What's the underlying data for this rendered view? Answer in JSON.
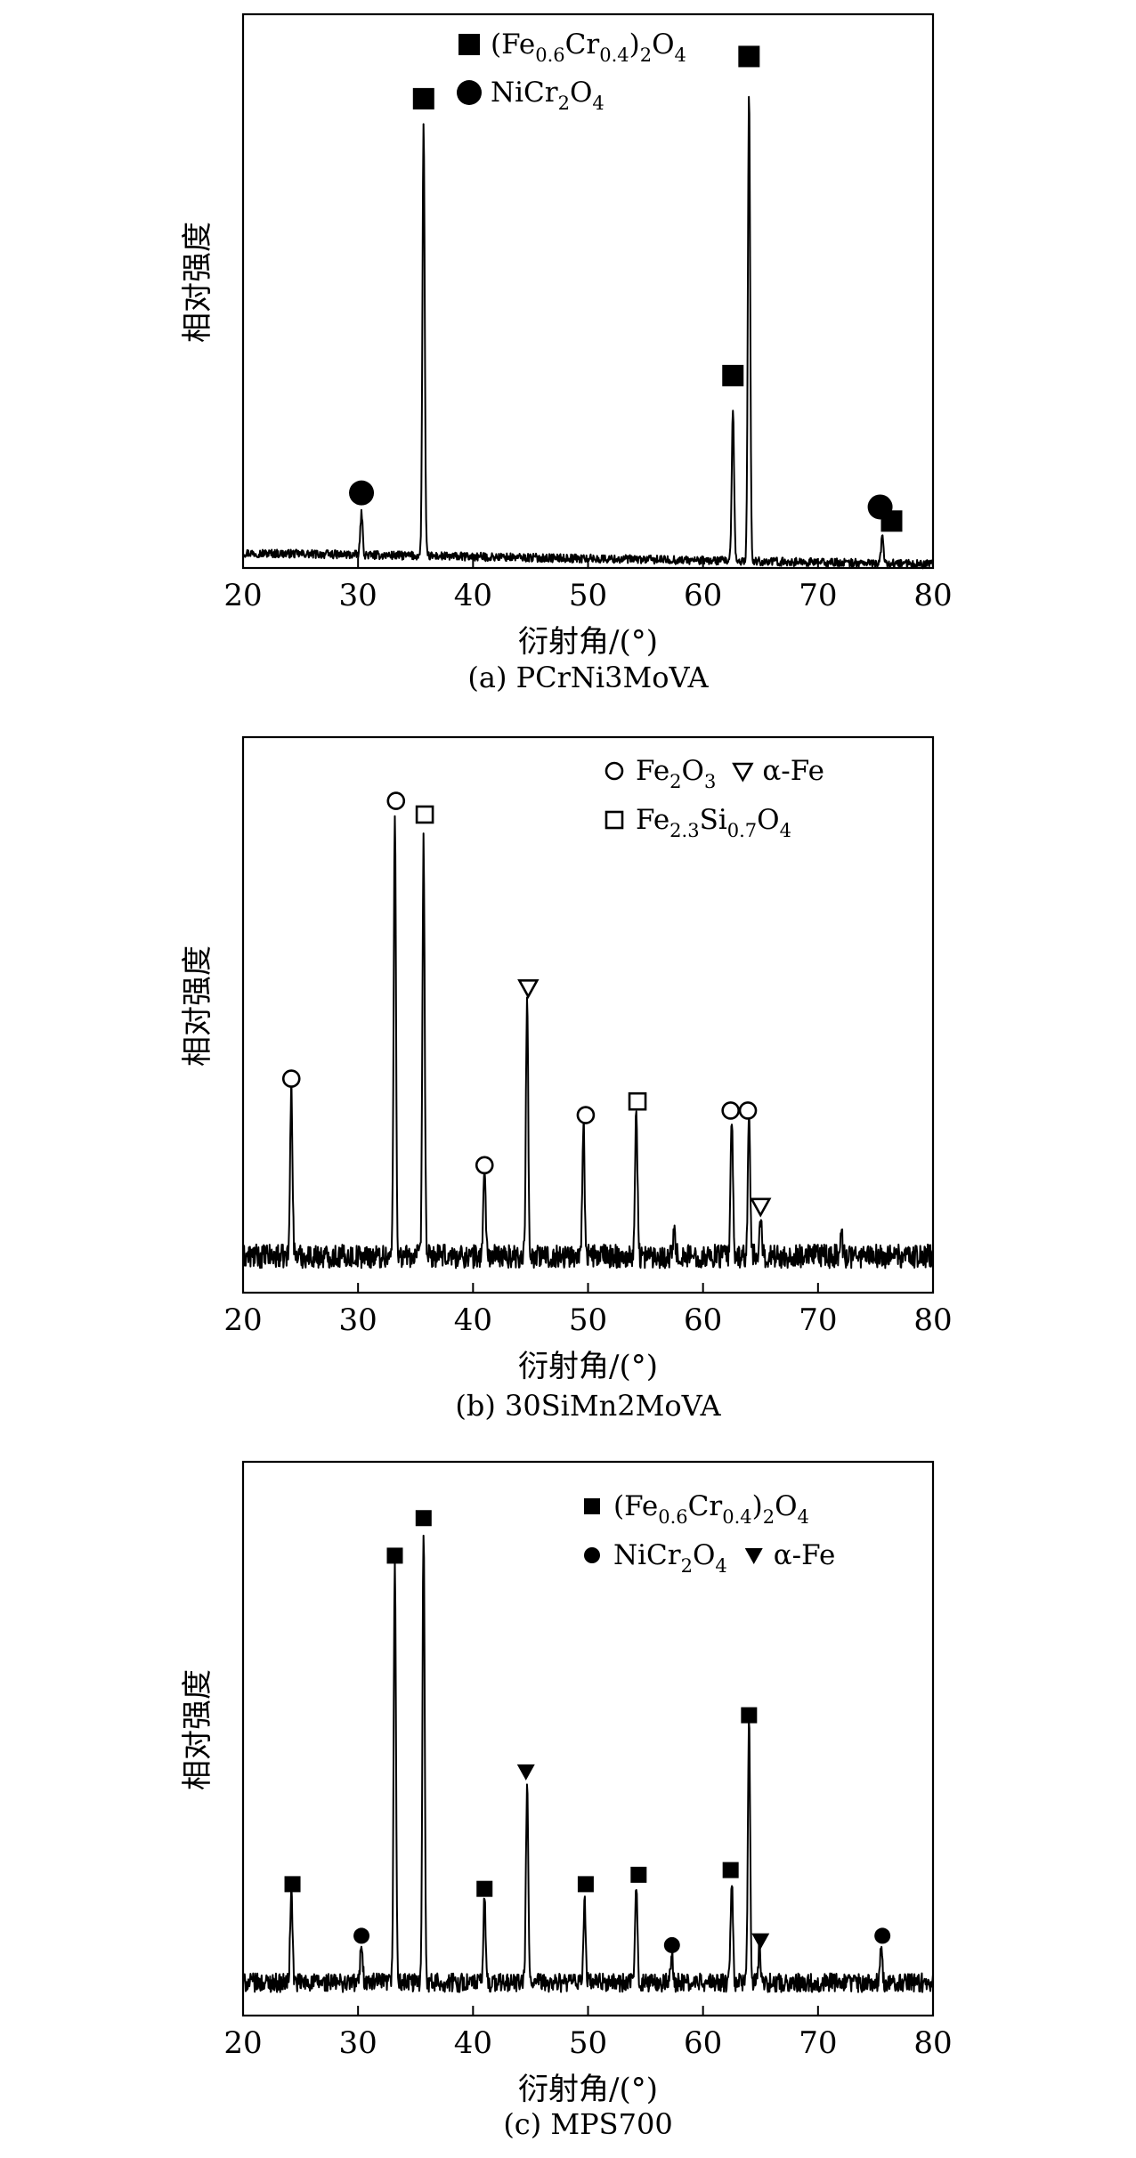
{
  "chart_data": [
    {
      "type": "line",
      "caption": "(a) PCrNi3MoVA",
      "xlabel": "衍射角/(°)",
      "ylabel": "相对强度",
      "xlim": [
        20,
        80
      ],
      "xticks": [
        20,
        30,
        40,
        50,
        60,
        70,
        80
      ],
      "y_tick_labels": false,
      "noise": 0.9,
      "baseline": 3.2,
      "slope": 0.04,
      "peaks": [
        {
          "x": 30.3,
          "height": 9
        },
        {
          "x": 35.7,
          "height": 92
        },
        {
          "x": 62.6,
          "height": 32
        },
        {
          "x": 64.0,
          "height": 100
        },
        {
          "x": 75.6,
          "height": 6
        }
      ],
      "markers": [
        {
          "x": 30.3,
          "y": 16,
          "phase": "NiCr2O4"
        },
        {
          "x": 35.7,
          "y": 100,
          "phase": "(Fe0.6Cr0.4)2O4"
        },
        {
          "x": 62.6,
          "y": 41,
          "phase": "(Fe0.6Cr0.4)2O4"
        },
        {
          "x": 64.0,
          "y": 109,
          "phase": "(Fe0.6Cr0.4)2O4"
        },
        {
          "x": 75.4,
          "y": 13,
          "phase": "NiCr2O4"
        },
        {
          "x": 76.4,
          "y": 10,
          "phase": "(Fe0.6Cr0.4)2O4"
        }
      ],
      "legend": [
        {
          "symbol": "filled-square",
          "parts": [
            [
              "(Fe",
              ""
            ],
            [
              "0.6",
              "sub"
            ],
            [
              "Cr",
              ""
            ],
            [
              "0.4",
              "sub"
            ],
            [
              ")",
              ""
            ],
            [
              "2",
              "sub"
            ],
            [
              "O",
              ""
            ],
            [
              "4",
              "sub"
            ]
          ]
        },
        {
          "symbol": "filled-circle",
          "parts": [
            [
              "NiCr",
              ""
            ],
            [
              "2",
              "sub"
            ],
            [
              "O",
              ""
            ],
            [
              "4",
              "sub"
            ]
          ]
        }
      ]
    },
    {
      "type": "line",
      "caption": "(b) 30SiMn2MoVA",
      "xlabel": "衍射角/(°)",
      "ylabel": "相对强度",
      "xlim": [
        20,
        80
      ],
      "xticks": [
        20,
        30,
        40,
        50,
        60,
        70,
        80
      ],
      "y_tick_labels": false,
      "noise": 2.6,
      "baseline": 8,
      "slope": 0,
      "peaks": [
        {
          "x": 24.2,
          "height": 38
        },
        {
          "x": 33.2,
          "height": 97
        },
        {
          "x": 35.7,
          "height": 91
        },
        {
          "x": 41.0,
          "height": 20
        },
        {
          "x": 44.7,
          "height": 57
        },
        {
          "x": 49.6,
          "height": 30
        },
        {
          "x": 54.2,
          "height": 33
        },
        {
          "x": 57.5,
          "height": 6
        },
        {
          "x": 62.5,
          "height": 30
        },
        {
          "x": 64.0,
          "height": 30
        },
        {
          "x": 65.0,
          "height": 8
        },
        {
          "x": 72.0,
          "height": 6
        }
      ],
      "markers": [
        {
          "x": 24.2,
          "y": 47,
          "phase": "Fe2O3"
        },
        {
          "x": 33.3,
          "y": 108,
          "phase": "Fe2O3"
        },
        {
          "x": 35.8,
          "y": 105,
          "phase": "Fe2.3Si0.7O4"
        },
        {
          "x": 41.0,
          "y": 28,
          "phase": "Fe2O3"
        },
        {
          "x": 44.8,
          "y": 67,
          "phase": "α-Fe"
        },
        {
          "x": 49.8,
          "y": 39,
          "phase": "Fe2O3"
        },
        {
          "x": 54.3,
          "y": 42,
          "phase": "Fe2.3Si0.7O4"
        },
        {
          "x": 62.4,
          "y": 40,
          "phase": "Fe2O3"
        },
        {
          "x": 63.9,
          "y": 40,
          "phase": "Fe2O3"
        },
        {
          "x": 65.0,
          "y": 19,
          "phase": "α-Fe"
        }
      ],
      "legend": [
        {
          "symbol": "open-circle",
          "parts": [
            [
              "Fe",
              ""
            ],
            [
              "2",
              "sub"
            ],
            [
              "O",
              ""
            ],
            [
              "3",
              "sub"
            ]
          ],
          "extra": {
            "symbol": "open-triangle-down",
            "parts": [
              [
                "α-Fe",
                ""
              ]
            ]
          }
        },
        {
          "symbol": "open-square",
          "parts": [
            [
              "Fe",
              ""
            ],
            [
              "2.3",
              "sub"
            ],
            [
              "Si",
              ""
            ],
            [
              "0.7",
              "sub"
            ],
            [
              "O",
              ""
            ],
            [
              "4",
              "sub"
            ]
          ]
        }
      ]
    },
    {
      "type": "line",
      "caption": "(c) MPS700",
      "xlabel": "衍射角/(°)",
      "ylabel": "相对强度",
      "xlim": [
        20,
        80
      ],
      "xticks": [
        20,
        30,
        40,
        50,
        60,
        70,
        80
      ],
      "y_tick_labels": false,
      "noise": 2.0,
      "baseline": 7,
      "slope": 0,
      "peaks": [
        {
          "x": 24.2,
          "height": 20
        },
        {
          "x": 30.3,
          "height": 9
        },
        {
          "x": 33.2,
          "height": 90
        },
        {
          "x": 35.7,
          "height": 97
        },
        {
          "x": 41.0,
          "height": 18
        },
        {
          "x": 44.7,
          "height": 42
        },
        {
          "x": 49.7,
          "height": 18
        },
        {
          "x": 54.2,
          "height": 21
        },
        {
          "x": 57.3,
          "height": 6
        },
        {
          "x": 62.5,
          "height": 22
        },
        {
          "x": 64.0,
          "height": 55
        },
        {
          "x": 64.9,
          "height": 7
        },
        {
          "x": 75.5,
          "height": 7
        }
      ],
      "markers": [
        {
          "x": 24.3,
          "y": 28,
          "phase": "(Fe0.6Cr0.4)2O4"
        },
        {
          "x": 30.3,
          "y": 17,
          "phase": "NiCr2O4"
        },
        {
          "x": 33.2,
          "y": 98,
          "phase": "(Fe0.6Cr0.4)2O4"
        },
        {
          "x": 35.7,
          "y": 106,
          "phase": "(Fe0.6Cr0.4)2O4"
        },
        {
          "x": 41.0,
          "y": 27,
          "phase": "(Fe0.6Cr0.4)2O4"
        },
        {
          "x": 44.6,
          "y": 52,
          "phase": "α-Fe"
        },
        {
          "x": 49.8,
          "y": 28,
          "phase": "(Fe0.6Cr0.4)2O4"
        },
        {
          "x": 54.4,
          "y": 30,
          "phase": "(Fe0.6Cr0.4)2O4"
        },
        {
          "x": 57.3,
          "y": 15,
          "phase": "NiCr2O4"
        },
        {
          "x": 62.4,
          "y": 31,
          "phase": "(Fe0.6Cr0.4)2O4"
        },
        {
          "x": 64.0,
          "y": 64,
          "phase": "(Fe0.6Cr0.4)2O4"
        },
        {
          "x": 65.0,
          "y": 16,
          "phase": "α-Fe"
        },
        {
          "x": 75.6,
          "y": 17,
          "phase": "NiCr2O4"
        }
      ],
      "legend": [
        {
          "symbol": "small-filled-square",
          "parts": [
            [
              "(Fe",
              ""
            ],
            [
              "0.6",
              "sub"
            ],
            [
              "Cr",
              ""
            ],
            [
              "0.4",
              "sub"
            ],
            [
              ")",
              ""
            ],
            [
              "2",
              "sub"
            ],
            [
              "O",
              ""
            ],
            [
              "4",
              "sub"
            ]
          ]
        },
        {
          "symbol": "small-filled-circle",
          "parts": [
            [
              "NiCr",
              ""
            ],
            [
              "2",
              "sub"
            ],
            [
              "O",
              ""
            ],
            [
              "4",
              "sub"
            ]
          ],
          "extra": {
            "symbol": "filled-triangle-down",
            "parts": [
              [
                "α-Fe",
                ""
              ]
            ]
          }
        }
      ]
    }
  ]
}
